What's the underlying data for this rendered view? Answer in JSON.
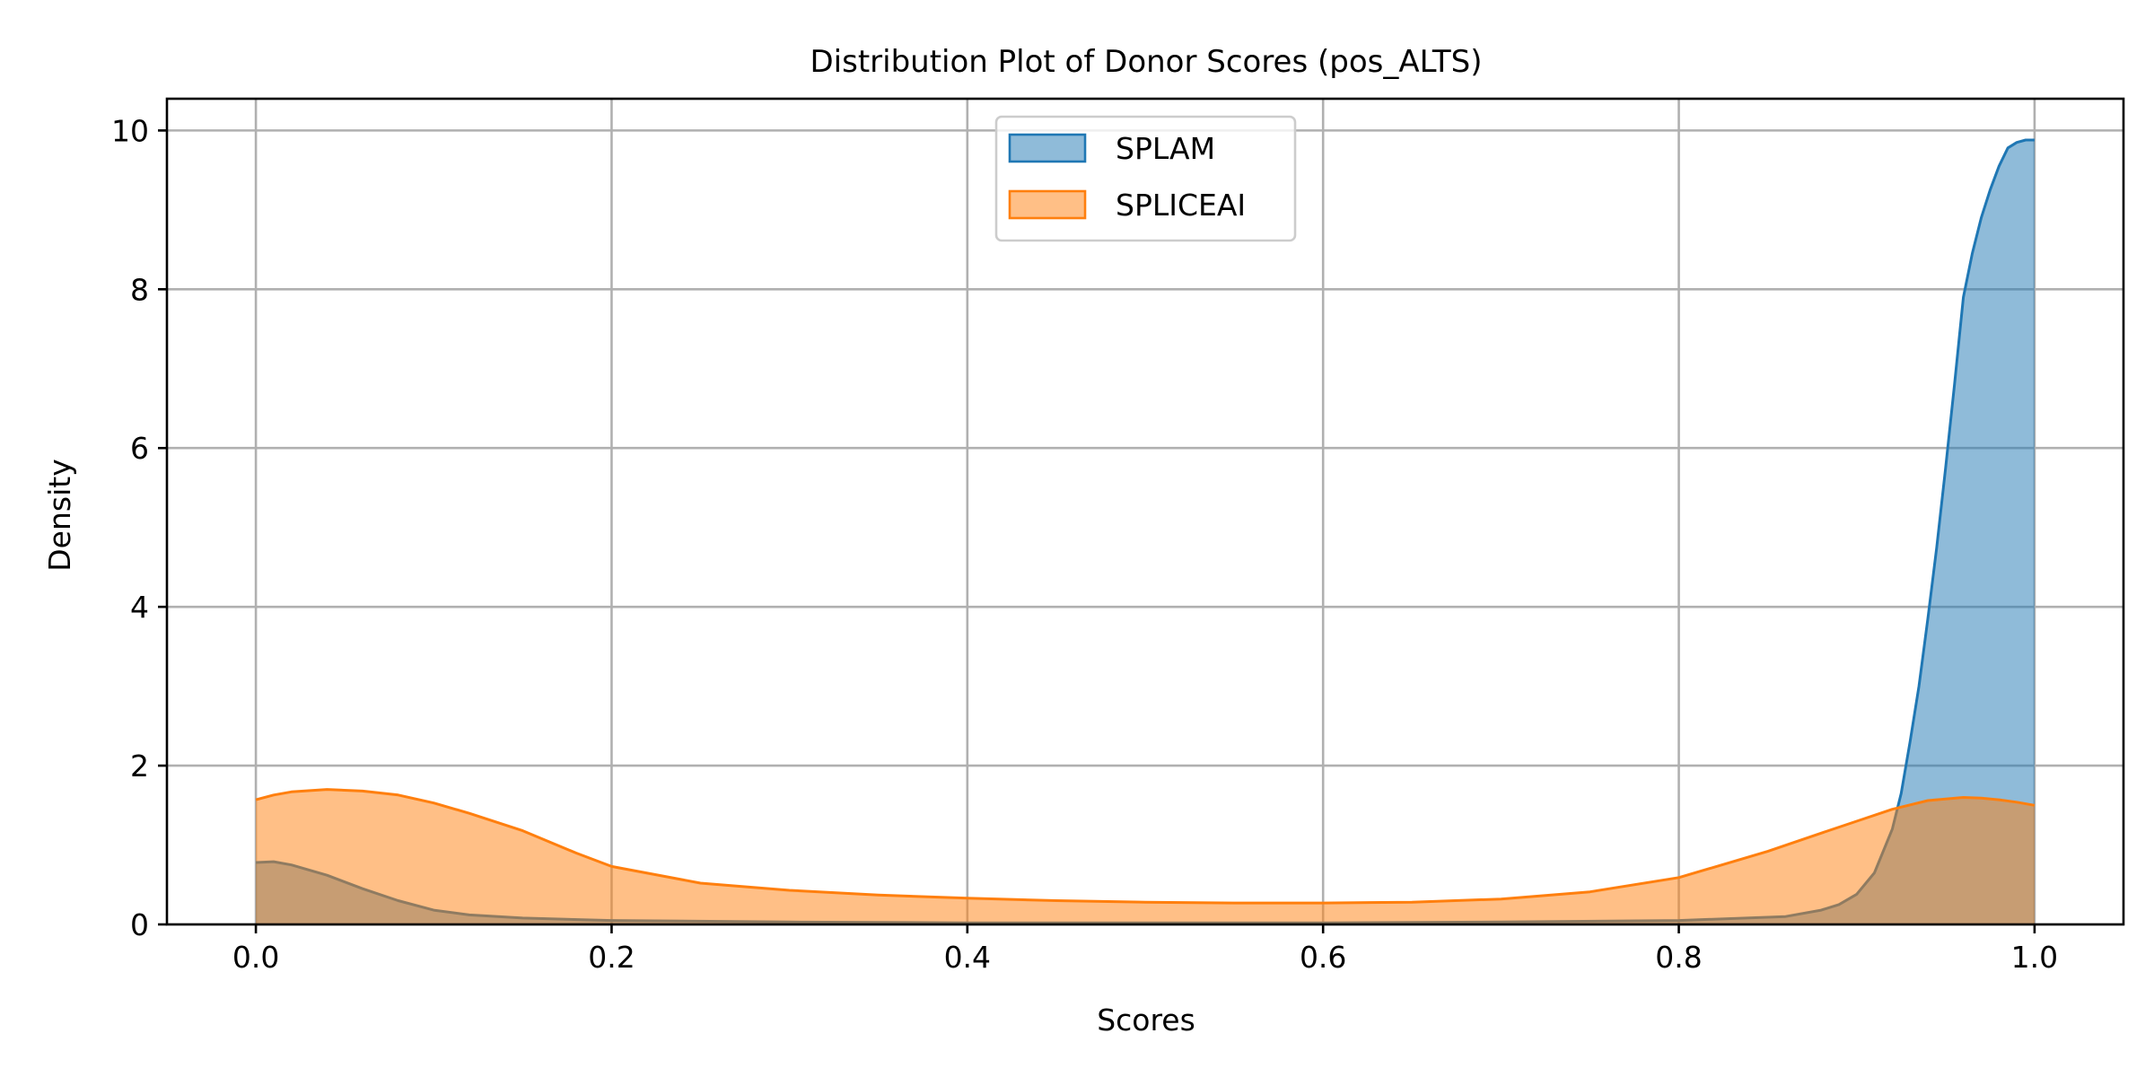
{
  "chart_data": {
    "type": "area",
    "title": "Distribution Plot of Donor Scores (pos_ALTS)",
    "xlabel": "Scores",
    "ylabel": "Density",
    "xlim": [
      -0.05,
      1.05
    ],
    "ylim": [
      0,
      10.4
    ],
    "xticks": [
      0.0,
      0.2,
      0.4,
      0.6,
      0.8,
      1.0
    ],
    "xtick_labels": [
      "0.0",
      "0.2",
      "0.4",
      "0.6",
      "0.8",
      "1.0"
    ],
    "yticks": [
      0,
      2,
      4,
      6,
      8,
      10
    ],
    "ytick_labels": [
      "0",
      "2",
      "4",
      "6",
      "8",
      "10"
    ],
    "grid": true,
    "legend_position": "upper center",
    "series": [
      {
        "name": "SPLAM",
        "color": "#1f77b4",
        "fill_opacity": 0.5,
        "x": [
          0.0,
          0.01,
          0.02,
          0.04,
          0.06,
          0.08,
          0.1,
          0.12,
          0.15,
          0.2,
          0.3,
          0.4,
          0.5,
          0.6,
          0.7,
          0.8,
          0.86,
          0.88,
          0.89,
          0.9,
          0.91,
          0.92,
          0.925,
          0.93,
          0.935,
          0.94,
          0.945,
          0.95,
          0.955,
          0.96,
          0.965,
          0.97,
          0.975,
          0.98,
          0.985,
          0.99,
          0.995,
          1.0
        ],
        "y": [
          0.78,
          0.79,
          0.75,
          0.62,
          0.45,
          0.3,
          0.18,
          0.12,
          0.08,
          0.05,
          0.03,
          0.02,
          0.02,
          0.02,
          0.03,
          0.05,
          0.1,
          0.18,
          0.25,
          0.38,
          0.65,
          1.2,
          1.65,
          2.3,
          3.0,
          3.85,
          4.75,
          5.75,
          6.8,
          7.9,
          8.45,
          8.9,
          9.25,
          9.55,
          9.78,
          9.85,
          9.88,
          9.88
        ]
      },
      {
        "name": "SPLICEAI",
        "color": "#ff7f0e",
        "fill_opacity": 0.5,
        "x": [
          0.0,
          0.01,
          0.02,
          0.04,
          0.06,
          0.08,
          0.1,
          0.12,
          0.15,
          0.18,
          0.2,
          0.25,
          0.3,
          0.35,
          0.4,
          0.45,
          0.5,
          0.55,
          0.6,
          0.65,
          0.7,
          0.75,
          0.8,
          0.85,
          0.88,
          0.9,
          0.92,
          0.94,
          0.96,
          0.97,
          0.98,
          0.99,
          1.0
        ],
        "y": [
          1.57,
          1.63,
          1.67,
          1.7,
          1.68,
          1.63,
          1.53,
          1.4,
          1.18,
          0.9,
          0.73,
          0.52,
          0.43,
          0.37,
          0.33,
          0.3,
          0.28,
          0.27,
          0.27,
          0.28,
          0.32,
          0.41,
          0.59,
          0.92,
          1.15,
          1.3,
          1.45,
          1.56,
          1.6,
          1.59,
          1.57,
          1.54,
          1.5
        ]
      }
    ]
  }
}
